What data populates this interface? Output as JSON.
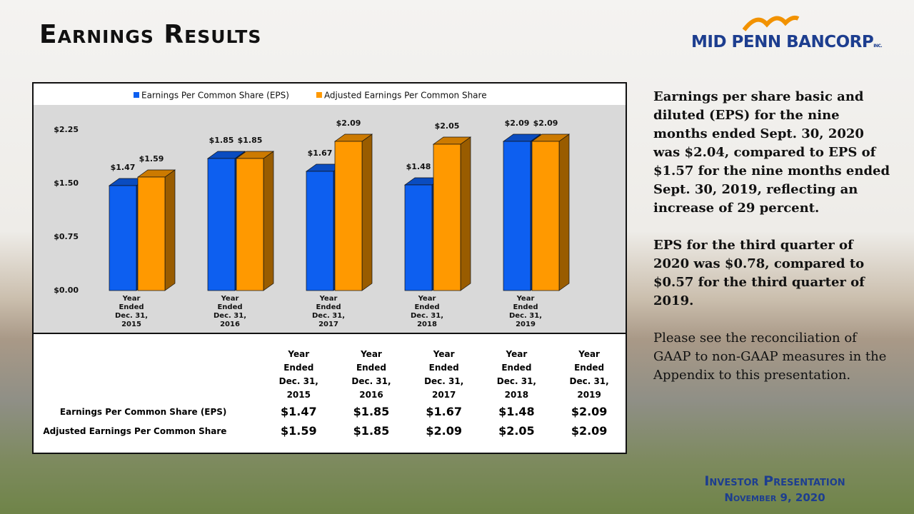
{
  "header": {
    "title": "Earnings Results",
    "logo": "MID PENN BANCORP",
    "logo_suffix": "INC."
  },
  "chart_data": {
    "type": "bar",
    "categories": [
      "Year Ended Dec. 31, 2015",
      "Year Ended Dec. 31, 2016",
      "Year Ended Dec. 31, 2017",
      "Year Ended Dec. 31, 2018",
      "Year Ended Dec. 31, 2019"
    ],
    "series": [
      {
        "name": "Earnings Per Common Share (EPS)",
        "color": "#0d5ff0",
        "values": [
          1.47,
          1.85,
          1.67,
          1.48,
          2.09
        ],
        "value_labels": [
          "$1.47",
          "$1.85",
          "$1.67",
          "$1.48",
          "$2.09"
        ]
      },
      {
        "name": "Adjusted Earnings Per Common Share",
        "color": "#ff9900",
        "values": [
          1.59,
          1.85,
          2.09,
          2.05,
          2.09
        ],
        "value_labels": [
          "$1.59",
          "$1.85",
          "$2.09",
          "$2.05",
          "$2.09"
        ]
      }
    ],
    "ylim": [
      0,
      2.25
    ],
    "yticks": [
      {
        "value": 0,
        "label": "$0.00"
      },
      {
        "value": 0.75,
        "label": "$0.75"
      },
      {
        "value": 1.5,
        "label": "$1.50"
      },
      {
        "value": 2.25,
        "label": "$2.25"
      }
    ],
    "legend": "top",
    "grid": false
  },
  "table": {
    "columns": [
      "Year Ended Dec. 31, 2015",
      "Year Ended Dec. 31, 2016",
      "Year Ended Dec. 31, 2017",
      "Year Ended Dec. 31, 2018",
      "Year Ended Dec. 31, 2019"
    ],
    "rows": [
      [
        "Earnings Per Common Share (EPS)",
        "$1.47",
        "$1.85",
        "$1.67",
        "$1.48",
        "$2.09"
      ],
      [
        "Adjusted Earnings Per Common Share",
        "$1.59",
        "$1.85",
        "$2.09",
        "$2.05",
        "$2.09"
      ]
    ]
  },
  "text": {
    "paragraphs": [
      "Earnings per share basic and diluted (EPS) for the nine months ended Sept. 30, 2020 was $2.04, compared to EPS of $1.57 for the nine months ended Sept. 30, 2019, reflecting an increase of 29 percent.",
      "EPS for the third quarter of 2020 was $0.78, compared to $0.57 for the third quarter of 2019.",
      "Please see the reconciliation of GAAP to non-GAAP measures in the Appendix to this presentation."
    ]
  },
  "footer": {
    "title": "Investor Presentation",
    "date": "November 9, 2020"
  }
}
